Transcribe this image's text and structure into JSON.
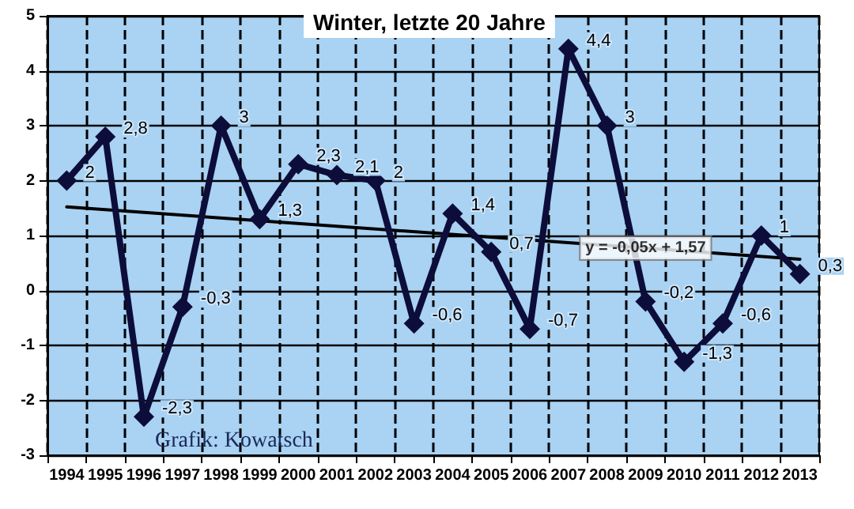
{
  "chart_data": {
    "type": "line",
    "title": "Winter, letzte 20 Jahre",
    "categories": [
      "1994",
      "1995",
      "1996",
      "1997",
      "1998",
      "1999",
      "2000",
      "2001",
      "2002",
      "2003",
      "2004",
      "2005",
      "2006",
      "2007",
      "2008",
      "2009",
      "2010",
      "2011",
      "2012",
      "2013"
    ],
    "series": [
      {
        "color": "#0d0d3a",
        "marker": "diamond",
        "values": [
          2,
          2.8,
          -2.3,
          -0.3,
          3,
          1.3,
          2.3,
          2.1,
          2,
          -0.6,
          1.4,
          0.7,
          -0.7,
          4.4,
          3,
          -0.2,
          -1.3,
          -0.6,
          1,
          0.3
        ],
        "value_labels": [
          "2",
          "2,8",
          "-2,3",
          "-0,3",
          "3",
          "1,3",
          "2,3",
          "2,1",
          "2",
          "-0,6",
          "1,4",
          "0,7",
          "-0,7",
          "4,4",
          "3",
          "-0,2",
          "-1,3",
          "-0,6",
          "1",
          "0,3"
        ]
      },
      {
        "type": "line",
        "color": "#000000",
        "marker": "none",
        "values": [
          1.52,
          null,
          null,
          null,
          null,
          null,
          null,
          null,
          null,
          null,
          null,
          null,
          null,
          null,
          null,
          null,
          null,
          null,
          null,
          0.57
        ]
      }
    ],
    "ylim": [
      -3,
      5
    ],
    "yticks": [
      -3,
      -2,
      -1,
      0,
      1,
      2,
      3,
      4,
      5
    ],
    "grid": true,
    "annotations": [
      {
        "text": "y = -0,05x + 1,57",
        "x": "2009",
        "y": 0.77
      },
      "Grafik: Kowatsch"
    ]
  }
}
